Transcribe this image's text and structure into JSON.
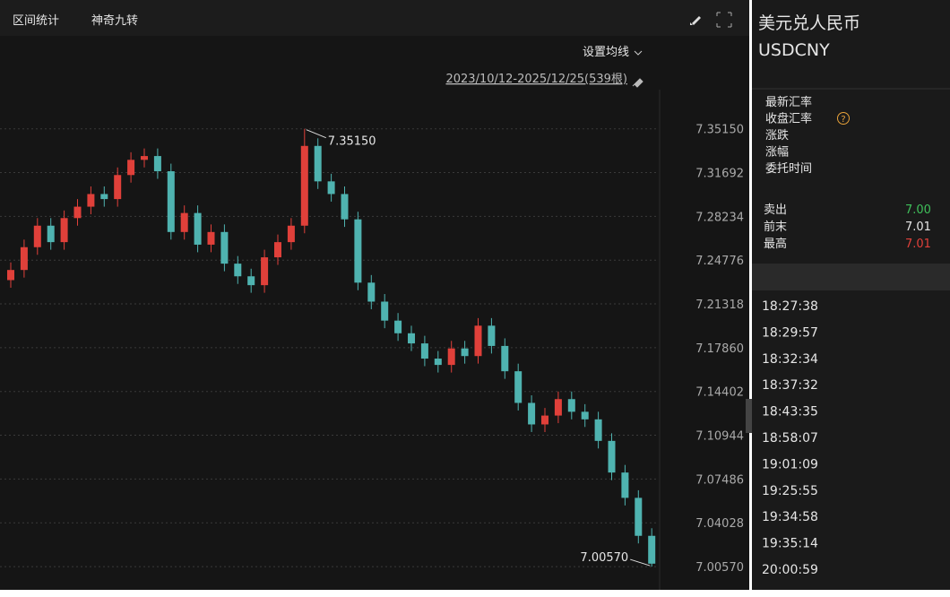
{
  "toolbar": {
    "tabs": [
      "区间统计",
      "神奇九转"
    ],
    "ma_setting": "设置均线",
    "range": "2023/10/12-2025/12/25(539根)"
  },
  "chart_data": {
    "type": "candlestick",
    "up_color": "#e0403a",
    "down_color": "#4fb3b0",
    "grid": true,
    "ylim": [
      6.993,
      7.386
    ],
    "yticks": [
      {
        "value": 7.3515,
        "label": "7.35150"
      },
      7.31692,
      7.28234,
      7.24776,
      7.21318,
      {
        "value": 7.1786,
        "label": "7.17860"
      },
      7.14402,
      7.10944,
      7.07486,
      7.04028,
      {
        "value": 7.0057,
        "label": "7.00570"
      }
    ],
    "open": [
      7.232,
      7.24,
      7.258,
      7.275,
      7.262,
      7.281,
      7.29,
      7.3,
      7.296,
      7.315,
      7.327,
      7.33,
      7.318,
      7.27,
      7.285,
      7.26,
      7.27,
      7.245,
      7.235,
      7.228,
      7.25,
      7.262,
      7.275,
      7.338,
      7.31,
      7.3,
      7.28,
      7.23,
      7.215,
      7.2,
      7.19,
      7.182,
      7.17,
      7.165,
      7.178,
      7.172,
      7.196,
      7.18,
      7.16,
      7.135,
      7.118,
      7.125,
      7.138,
      7.128,
      7.122,
      7.105,
      7.08,
      7.06,
      7.03
    ],
    "high": [
      7.246,
      7.264,
      7.281,
      7.281,
      7.287,
      7.296,
      7.306,
      7.306,
      7.321,
      7.333,
      7.336,
      7.336,
      7.324,
      7.291,
      7.291,
      7.276,
      7.276,
      7.251,
      7.241,
      7.256,
      7.268,
      7.281,
      7.3515,
      7.344,
      7.316,
      7.306,
      7.286,
      7.236,
      7.221,
      7.206,
      7.196,
      7.188,
      7.176,
      7.184,
      7.184,
      7.202,
      7.202,
      7.186,
      7.166,
      7.141,
      7.131,
      7.144,
      7.144,
      7.134,
      7.128,
      7.111,
      7.086,
      7.066,
      7.036
    ],
    "low": [
      7.226,
      7.234,
      7.252,
      7.256,
      7.256,
      7.275,
      7.284,
      7.29,
      7.29,
      7.309,
      7.321,
      7.312,
      7.264,
      7.264,
      7.254,
      7.254,
      7.239,
      7.229,
      7.222,
      7.222,
      7.244,
      7.256,
      7.269,
      7.304,
      7.294,
      7.274,
      7.224,
      7.209,
      7.194,
      7.184,
      7.176,
      7.164,
      7.159,
      7.159,
      7.166,
      7.166,
      7.174,
      7.154,
      7.129,
      7.112,
      7.112,
      7.119,
      7.122,
      7.116,
      7.099,
      7.074,
      7.054,
      7.024,
      7.0057
    ],
    "close": [
      7.24,
      7.258,
      7.275,
      7.262,
      7.281,
      7.29,
      7.3,
      7.296,
      7.315,
      7.327,
      7.33,
      7.318,
      7.27,
      7.285,
      7.26,
      7.27,
      7.245,
      7.235,
      7.228,
      7.25,
      7.262,
      7.275,
      7.338,
      7.31,
      7.3,
      7.28,
      7.23,
      7.215,
      7.2,
      7.19,
      7.182,
      7.17,
      7.165,
      7.178,
      7.172,
      7.196,
      7.18,
      7.16,
      7.135,
      7.118,
      7.125,
      7.138,
      7.128,
      7.122,
      7.105,
      7.08,
      7.06,
      7.03,
      7.008
    ],
    "max_label": "7.35150",
    "min_label": "7.00570"
  },
  "quote": {
    "name": "美元兑人民币",
    "code": "USDCNY",
    "fields": [
      "最新汇率",
      "收盘汇率",
      "涨跌",
      "涨幅",
      "委托时间"
    ],
    "rows": [
      {
        "label": "卖出",
        "value": "7.00",
        "color": "#3fbf5a"
      },
      {
        "label": "前末",
        "value": "7.01",
        "color": "#e6e6e6"
      },
      {
        "label": "最高",
        "value": "7.01",
        "color": "#e0403a"
      }
    ],
    "times": [
      "18:27:38",
      "18:29:57",
      "18:32:34",
      "18:37:32",
      "18:43:35",
      "18:58:07",
      "19:01:09",
      "19:25:55",
      "19:34:58",
      "19:35:14",
      "20:00:59"
    ]
  }
}
